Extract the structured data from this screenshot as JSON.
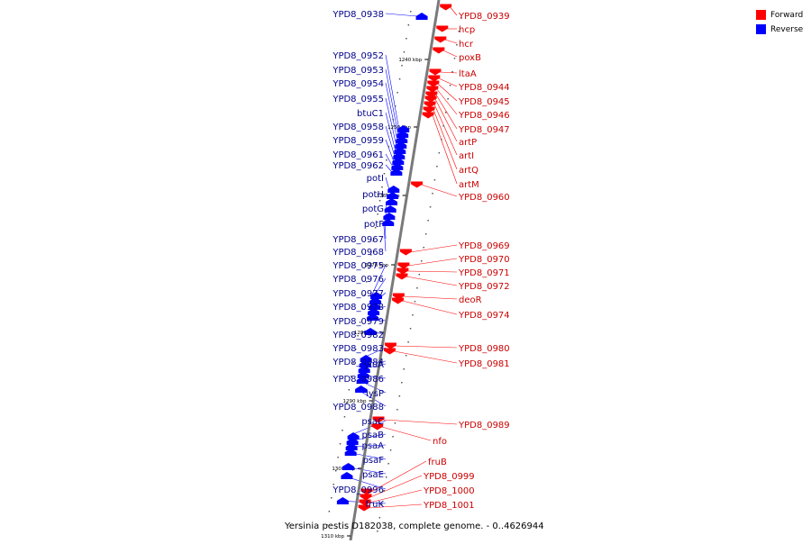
{
  "legend": {
    "forward_label": "Forward",
    "reverse_label": "Reverse",
    "forward_color": "#ff0000",
    "reverse_color": "#0000ff"
  },
  "caption": "Yersinia pestis D182038, complete genome. - 0..4626944",
  "colors": {
    "forward": "#ff0000",
    "reverse": "#0000ff",
    "axis": "#7a7a7a",
    "forward_text": "#cc0000",
    "reverse_text": "#00008b"
  },
  "ticks": [
    "1240 kbp",
    "1250 kbp",
    "1260 kbp",
    "1270 kbp",
    "1280 kbp",
    "1290 kbp",
    "1300 kbp",
    "1310 kbp"
  ],
  "reverse_labels": [
    "YPD8_0938",
    "YPD8_0952",
    "YPD8_0953",
    "YPD8_0954",
    "YPD8_0955",
    "btuC1",
    "YPD8_0958",
    "YPD8_0959",
    "YPD8_0961",
    "YPD8_0962",
    "potI",
    "potH",
    "potG",
    "potF",
    "YPD8_0967",
    "YPD8_0968",
    "YPD8_0975",
    "YPD8_0976",
    "YPD8_0977",
    "YPD8_0978",
    "YPD8_0979",
    "YPD8_0982",
    "YPD8_0983",
    "YPD8_0984",
    "yiuA",
    "YPD8_0986",
    "lysP",
    "YPD8_0988",
    "psaC",
    "psaB",
    "psaA",
    "psaF",
    "psaE",
    "YPD8_0996",
    "fruK"
  ],
  "forward_labels": [
    "YPD8_0939",
    "hcp",
    "hcr",
    "poxB",
    "ltaA",
    "YPD8_0944",
    "YPD8_0945",
    "YPD8_0946",
    "YPD8_0947",
    "artP",
    "artI",
    "artQ",
    "artM",
    "YPD8_0960",
    "YPD8_0969",
    "YPD8_0970",
    "YPD8_0971",
    "YPD8_0972",
    "deoR",
    "YPD8_0974",
    "YPD8_0980",
    "YPD8_0981",
    "YPD8_0989",
    "nfo",
    "fruB",
    "YPD8_0999",
    "YPD8_1000",
    "YPD8_1001"
  ]
}
